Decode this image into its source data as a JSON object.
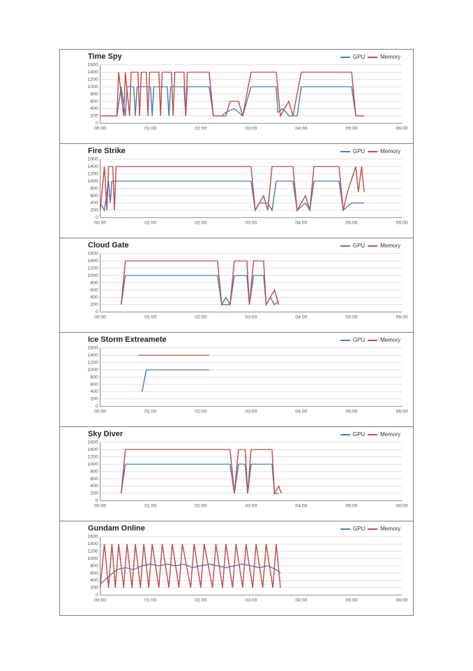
{
  "global": {
    "ylim": [
      0,
      1600
    ],
    "ytick_step": 200,
    "xticks": [
      "00:00",
      "01:00",
      "02:00",
      "03:00",
      "04:00",
      "05:00",
      "06:00"
    ],
    "xlim": [
      0,
      360
    ],
    "background_color": "#ffffff",
    "grid_color": "#bfbfbf",
    "axis_color": "#808080",
    "line_width": 1.5,
    "title_fontsize": 11,
    "tick_fontsize": 7,
    "legend_fontsize": 8,
    "series_defs": [
      {
        "key": "gpu",
        "label": "GPU",
        "color": "#4a7ebb"
      },
      {
        "key": "memory",
        "label": "Memory",
        "color": "#c0504d"
      }
    ]
  },
  "charts": [
    {
      "title": "Time Spy",
      "type": "line",
      "gpu": [
        [
          0,
          200
        ],
        [
          20,
          200
        ],
        [
          25,
          1000
        ],
        [
          30,
          200
        ],
        [
          32,
          1000
        ],
        [
          40,
          1000
        ],
        [
          42,
          200
        ],
        [
          44,
          1000
        ],
        [
          60,
          1000
        ],
        [
          62,
          200
        ],
        [
          64,
          1000
        ],
        [
          80,
          1000
        ],
        [
          82,
          200
        ],
        [
          84,
          1000
        ],
        [
          100,
          1000
        ],
        [
          102,
          200
        ],
        [
          104,
          1000
        ],
        [
          130,
          1000
        ],
        [
          135,
          200
        ],
        [
          145,
          200
        ],
        [
          150,
          300
        ],
        [
          160,
          400
        ],
        [
          165,
          300
        ],
        [
          170,
          200
        ],
        [
          180,
          1000
        ],
        [
          210,
          1000
        ],
        [
          212,
          300
        ],
        [
          218,
          400
        ],
        [
          222,
          300
        ],
        [
          225,
          200
        ],
        [
          235,
          200
        ],
        [
          240,
          1000
        ],
        [
          300,
          1000
        ],
        [
          305,
          200
        ],
        [
          315,
          200
        ]
      ],
      "memory": [
        [
          0,
          200
        ],
        [
          20,
          200
        ],
        [
          22,
          1400
        ],
        [
          28,
          200
        ],
        [
          30,
          1400
        ],
        [
          35,
          200
        ],
        [
          37,
          1400
        ],
        [
          45,
          1400
        ],
        [
          47,
          200
        ],
        [
          49,
          1400
        ],
        [
          55,
          1400
        ],
        [
          57,
          200
        ],
        [
          59,
          1400
        ],
        [
          70,
          1400
        ],
        [
          72,
          200
        ],
        [
          74,
          1400
        ],
        [
          85,
          1400
        ],
        [
          87,
          200
        ],
        [
          89,
          1400
        ],
        [
          100,
          1400
        ],
        [
          102,
          200
        ],
        [
          104,
          1400
        ],
        [
          130,
          1400
        ],
        [
          135,
          200
        ],
        [
          150,
          200
        ],
        [
          155,
          600
        ],
        [
          165,
          600
        ],
        [
          170,
          200
        ],
        [
          180,
          1400
        ],
        [
          210,
          1400
        ],
        [
          215,
          200
        ],
        [
          225,
          600
        ],
        [
          230,
          200
        ],
        [
          240,
          1400
        ],
        [
          300,
          1400
        ],
        [
          305,
          200
        ],
        [
          315,
          200
        ]
      ]
    },
    {
      "title": "Fire Strike",
      "type": "line",
      "gpu": [
        [
          0,
          400
        ],
        [
          5,
          200
        ],
        [
          10,
          1000
        ],
        [
          12,
          400
        ],
        [
          14,
          1000
        ],
        [
          180,
          1000
        ],
        [
          185,
          200
        ],
        [
          190,
          400
        ],
        [
          200,
          400
        ],
        [
          205,
          200
        ],
        [
          210,
          1000
        ],
        [
          230,
          1000
        ],
        [
          235,
          200
        ],
        [
          245,
          400
        ],
        [
          250,
          200
        ],
        [
          255,
          1000
        ],
        [
          285,
          1000
        ],
        [
          290,
          200
        ],
        [
          300,
          400
        ],
        [
          310,
          400
        ],
        [
          315,
          400
        ]
      ],
      "memory": [
        [
          0,
          200
        ],
        [
          5,
          1400
        ],
        [
          8,
          200
        ],
        [
          10,
          1400
        ],
        [
          15,
          1400
        ],
        [
          17,
          200
        ],
        [
          19,
          1400
        ],
        [
          180,
          1400
        ],
        [
          185,
          200
        ],
        [
          195,
          600
        ],
        [
          200,
          200
        ],
        [
          205,
          1400
        ],
        [
          230,
          1400
        ],
        [
          235,
          200
        ],
        [
          245,
          600
        ],
        [
          250,
          200
        ],
        [
          255,
          1400
        ],
        [
          285,
          1400
        ],
        [
          290,
          200
        ],
        [
          295,
          700
        ],
        [
          305,
          1400
        ],
        [
          308,
          700
        ],
        [
          312,
          1400
        ],
        [
          315,
          700
        ]
      ]
    },
    {
      "title": "Cloud Gate",
      "type": "line",
      "gpu": [
        [
          25,
          200
        ],
        [
          30,
          1000
        ],
        [
          140,
          1000
        ],
        [
          145,
          200
        ],
        [
          150,
          400
        ],
        [
          155,
          200
        ],
        [
          160,
          1000
        ],
        [
          175,
          1000
        ],
        [
          178,
          200
        ],
        [
          183,
          1000
        ],
        [
          195,
          1000
        ],
        [
          198,
          200
        ],
        [
          203,
          400
        ],
        [
          208,
          200
        ],
        [
          213,
          300
        ]
      ],
      "memory": [
        [
          25,
          200
        ],
        [
          30,
          1400
        ],
        [
          140,
          1400
        ],
        [
          145,
          200
        ],
        [
          155,
          200
        ],
        [
          160,
          1400
        ],
        [
          175,
          1400
        ],
        [
          178,
          200
        ],
        [
          183,
          1400
        ],
        [
          195,
          1400
        ],
        [
          198,
          200
        ],
        [
          208,
          600
        ],
        [
          213,
          200
        ]
      ]
    },
    {
      "title": "Ice Storm Extreamete",
      "type": "line",
      "gpu": [
        [
          50,
          400
        ],
        [
          55,
          1000
        ],
        [
          130,
          1000
        ]
      ],
      "memory": [
        [
          45,
          1400
        ],
        [
          130,
          1400
        ]
      ]
    },
    {
      "title": "Sky Diver",
      "type": "line",
      "gpu": [
        [
          25,
          200
        ],
        [
          30,
          1000
        ],
        [
          155,
          1000
        ],
        [
          160,
          200
        ],
        [
          165,
          1000
        ],
        [
          173,
          1000
        ],
        [
          176,
          200
        ],
        [
          180,
          1000
        ],
        [
          205,
          1000
        ],
        [
          208,
          200
        ],
        [
          213,
          200
        ]
      ],
      "memory": [
        [
          25,
          200
        ],
        [
          30,
          1400
        ],
        [
          155,
          1400
        ],
        [
          160,
          200
        ],
        [
          165,
          1400
        ],
        [
          173,
          1400
        ],
        [
          176,
          200
        ],
        [
          180,
          1400
        ],
        [
          205,
          1400
        ],
        [
          208,
          200
        ],
        [
          213,
          400
        ],
        [
          216,
          200
        ]
      ]
    },
    {
      "title": "Gundam Online",
      "type": "line",
      "gpu": [
        [
          0,
          300
        ],
        [
          10,
          500
        ],
        [
          20,
          700
        ],
        [
          30,
          750
        ],
        [
          40,
          700
        ],
        [
          50,
          800
        ],
        [
          60,
          850
        ],
        [
          70,
          800
        ],
        [
          80,
          850
        ],
        [
          90,
          800
        ],
        [
          100,
          850
        ],
        [
          110,
          750
        ],
        [
          120,
          800
        ],
        [
          130,
          850
        ],
        [
          140,
          800
        ],
        [
          150,
          750
        ],
        [
          160,
          800
        ],
        [
          170,
          850
        ],
        [
          180,
          800
        ],
        [
          190,
          750
        ],
        [
          200,
          800
        ],
        [
          210,
          700
        ],
        [
          215,
          600
        ]
      ],
      "memory": [
        [
          0,
          200
        ],
        [
          5,
          1400
        ],
        [
          10,
          200
        ],
        [
          14,
          1400
        ],
        [
          18,
          200
        ],
        [
          22,
          1400
        ],
        [
          28,
          200
        ],
        [
          32,
          1400
        ],
        [
          38,
          200
        ],
        [
          42,
          1400
        ],
        [
          48,
          200
        ],
        [
          52,
          1400
        ],
        [
          58,
          200
        ],
        [
          62,
          1400
        ],
        [
          70,
          200
        ],
        [
          74,
          1400
        ],
        [
          82,
          200
        ],
        [
          86,
          1400
        ],
        [
          94,
          200
        ],
        [
          98,
          1400
        ],
        [
          108,
          200
        ],
        [
          112,
          1400
        ],
        [
          120,
          200
        ],
        [
          124,
          1400
        ],
        [
          134,
          200
        ],
        [
          138,
          1400
        ],
        [
          146,
          200
        ],
        [
          150,
          1400
        ],
        [
          158,
          200
        ],
        [
          162,
          1400
        ],
        [
          170,
          200
        ],
        [
          174,
          1400
        ],
        [
          182,
          200
        ],
        [
          186,
          1400
        ],
        [
          194,
          200
        ],
        [
          198,
          1400
        ],
        [
          206,
          200
        ],
        [
          210,
          1400
        ],
        [
          215,
          200
        ]
      ]
    }
  ]
}
